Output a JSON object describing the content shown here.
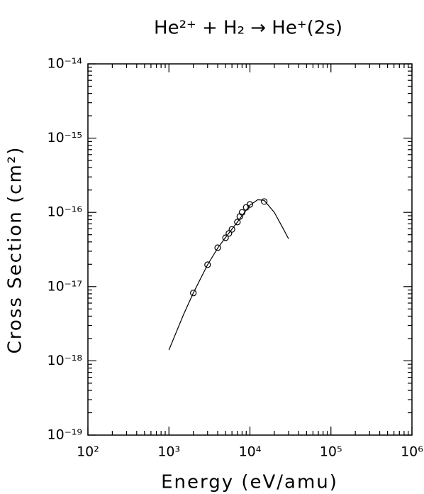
{
  "chart_data": {
    "type": "scatter",
    "title": "He²⁺ + H₂ → He⁺(2s)",
    "x_label": "Energy (eV/amu)",
    "y_label": "Cross Section (cm²)",
    "log_x": true,
    "log_y": true,
    "color": "#000000",
    "xlim": [
      100,
      1000000
    ],
    "xticks": [
      {
        "value": 100,
        "label": "10²"
      },
      {
        "value": 1000,
        "label": "10³"
      },
      {
        "value": 10000,
        "label": "10⁴"
      },
      {
        "value": 100000,
        "label": "10⁵"
      },
      {
        "value": 1000000,
        "label": "10⁶"
      }
    ],
    "ylim": [
      1e-19,
      1e-14
    ],
    "yticks": [
      {
        "value": 1e-19,
        "label": "10⁻¹⁹"
      },
      {
        "value": 1e-18,
        "label": "10⁻¹⁸"
      },
      {
        "value": 1e-17,
        "label": "10⁻¹⁷"
      },
      {
        "value": 1e-16,
        "label": "10⁻¹⁶"
      },
      {
        "value": 1e-15,
        "label": "10⁻¹⁵"
      },
      {
        "value": 1e-14,
        "label": "10⁻¹⁴"
      }
    ],
    "series": [
      {
        "type": "line",
        "x": [
          1000,
          1500,
          2000,
          3000,
          4000,
          5000,
          7000,
          10000,
          12500,
          15000,
          20000,
          25000,
          30000
        ],
        "values": [
          1.4e-18,
          4.1e-18,
          8.2e-18,
          1.97e-17,
          3.3e-17,
          4.6e-17,
          7.4e-17,
          1.25e-16,
          1.48e-16,
          1.45e-16,
          1e-16,
          6.4e-17,
          4.4e-17
        ]
      },
      {
        "type": "scatter",
        "x": [
          2000,
          3000,
          4000,
          5000,
          5500,
          6000,
          7000,
          7500,
          8000,
          9000,
          10000,
          15000
        ],
        "values": [
          8.2e-18,
          1.97e-17,
          3.34e-17,
          4.55e-17,
          5.2e-17,
          5.9e-17,
          7.4e-17,
          8.8e-17,
          1e-16,
          1.17e-16,
          1.28e-16,
          1.4e-16
        ]
      }
    ]
  }
}
